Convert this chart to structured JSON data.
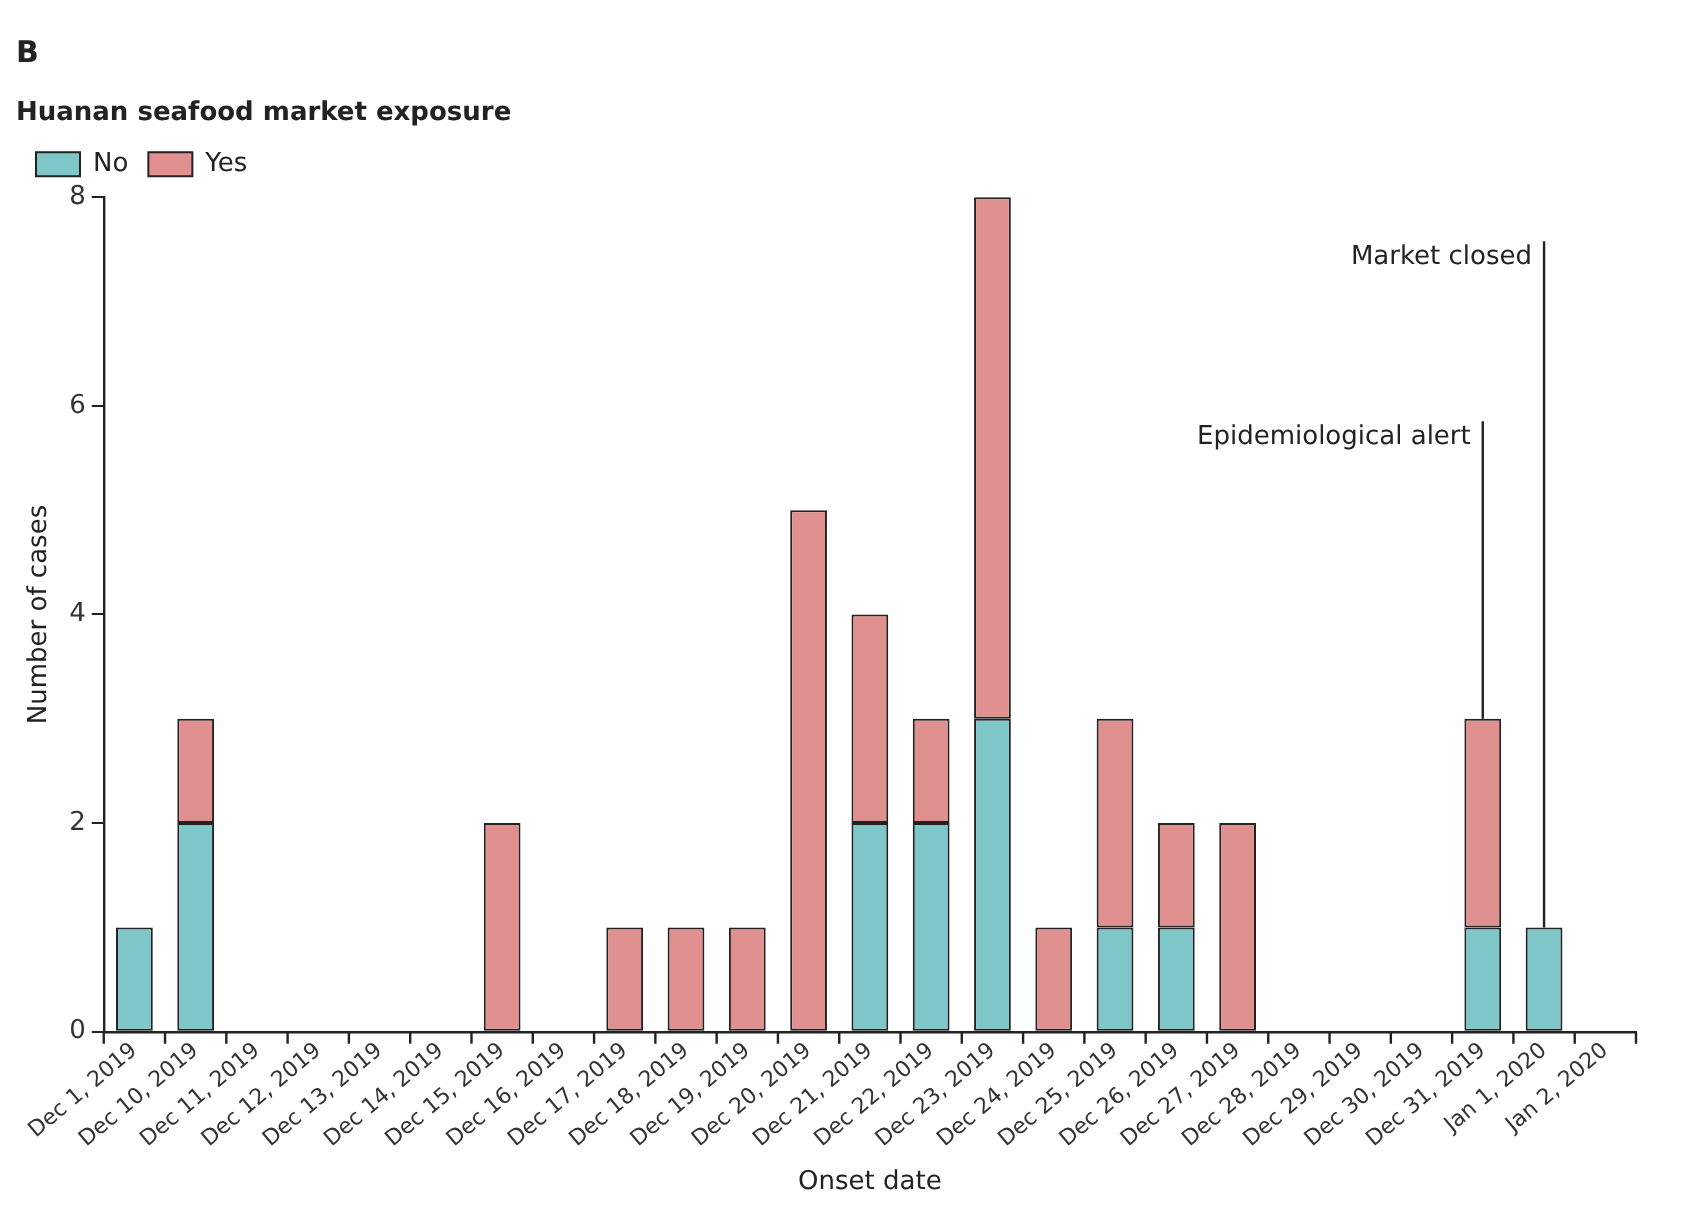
{
  "chart_data": {
    "type": "bar",
    "title": "B",
    "xlabel": "Onset date",
    "ylabel": "Number of cases",
    "legend_title": "Huanan seafood market exposure",
    "categories": [
      "Dec 1, 2019",
      "Dec 10, 2019",
      "Dec 11, 2019",
      "Dec 12, 2019",
      "Dec 13, 2019",
      "Dec 14, 2019",
      "Dec 15, 2019",
      "Dec 16, 2019",
      "Dec 17, 2019",
      "Dec 18, 2019",
      "Dec 19, 2019",
      "Dec 20, 2019",
      "Dec 21, 2019",
      "Dec 22, 2019",
      "Dec 23, 2019",
      "Dec 24, 2019",
      "Dec 25, 2019",
      "Dec 26, 2019",
      "Dec 27, 2019",
      "Dec 28, 2019",
      "Dec 29, 2019",
      "Dec 30, 2019",
      "Dec 31, 2019",
      "Jan 1, 2020",
      "Jan 2, 2020"
    ],
    "stacked": true,
    "series": [
      {
        "name": "No",
        "color": "#7fc6c9",
        "values": [
          1,
          2,
          0,
          0,
          0,
          0,
          0,
          0,
          0,
          0,
          0,
          0,
          2,
          2,
          3,
          0,
          1,
          1,
          0,
          0,
          0,
          0,
          1,
          1,
          0
        ]
      },
      {
        "name": "Yes",
        "color": "#e0918f",
        "values": [
          0,
          1,
          0,
          0,
          0,
          0,
          2,
          0,
          1,
          1,
          1,
          5,
          2,
          1,
          5,
          1,
          2,
          1,
          2,
          0,
          0,
          0,
          2,
          0,
          0
        ]
      }
    ],
    "ylim": [
      0,
      8
    ],
    "yticks": [
      0,
      2,
      4,
      6,
      8
    ],
    "grid": false,
    "legend": "top left",
    "ref_lines": [
      {
        "axis": "x",
        "value": "Dec 31, 2019",
        "label": "Epidemiological alert"
      },
      {
        "axis": "x",
        "value": "Jan 1, 2020",
        "label": "Market closed"
      }
    ]
  }
}
